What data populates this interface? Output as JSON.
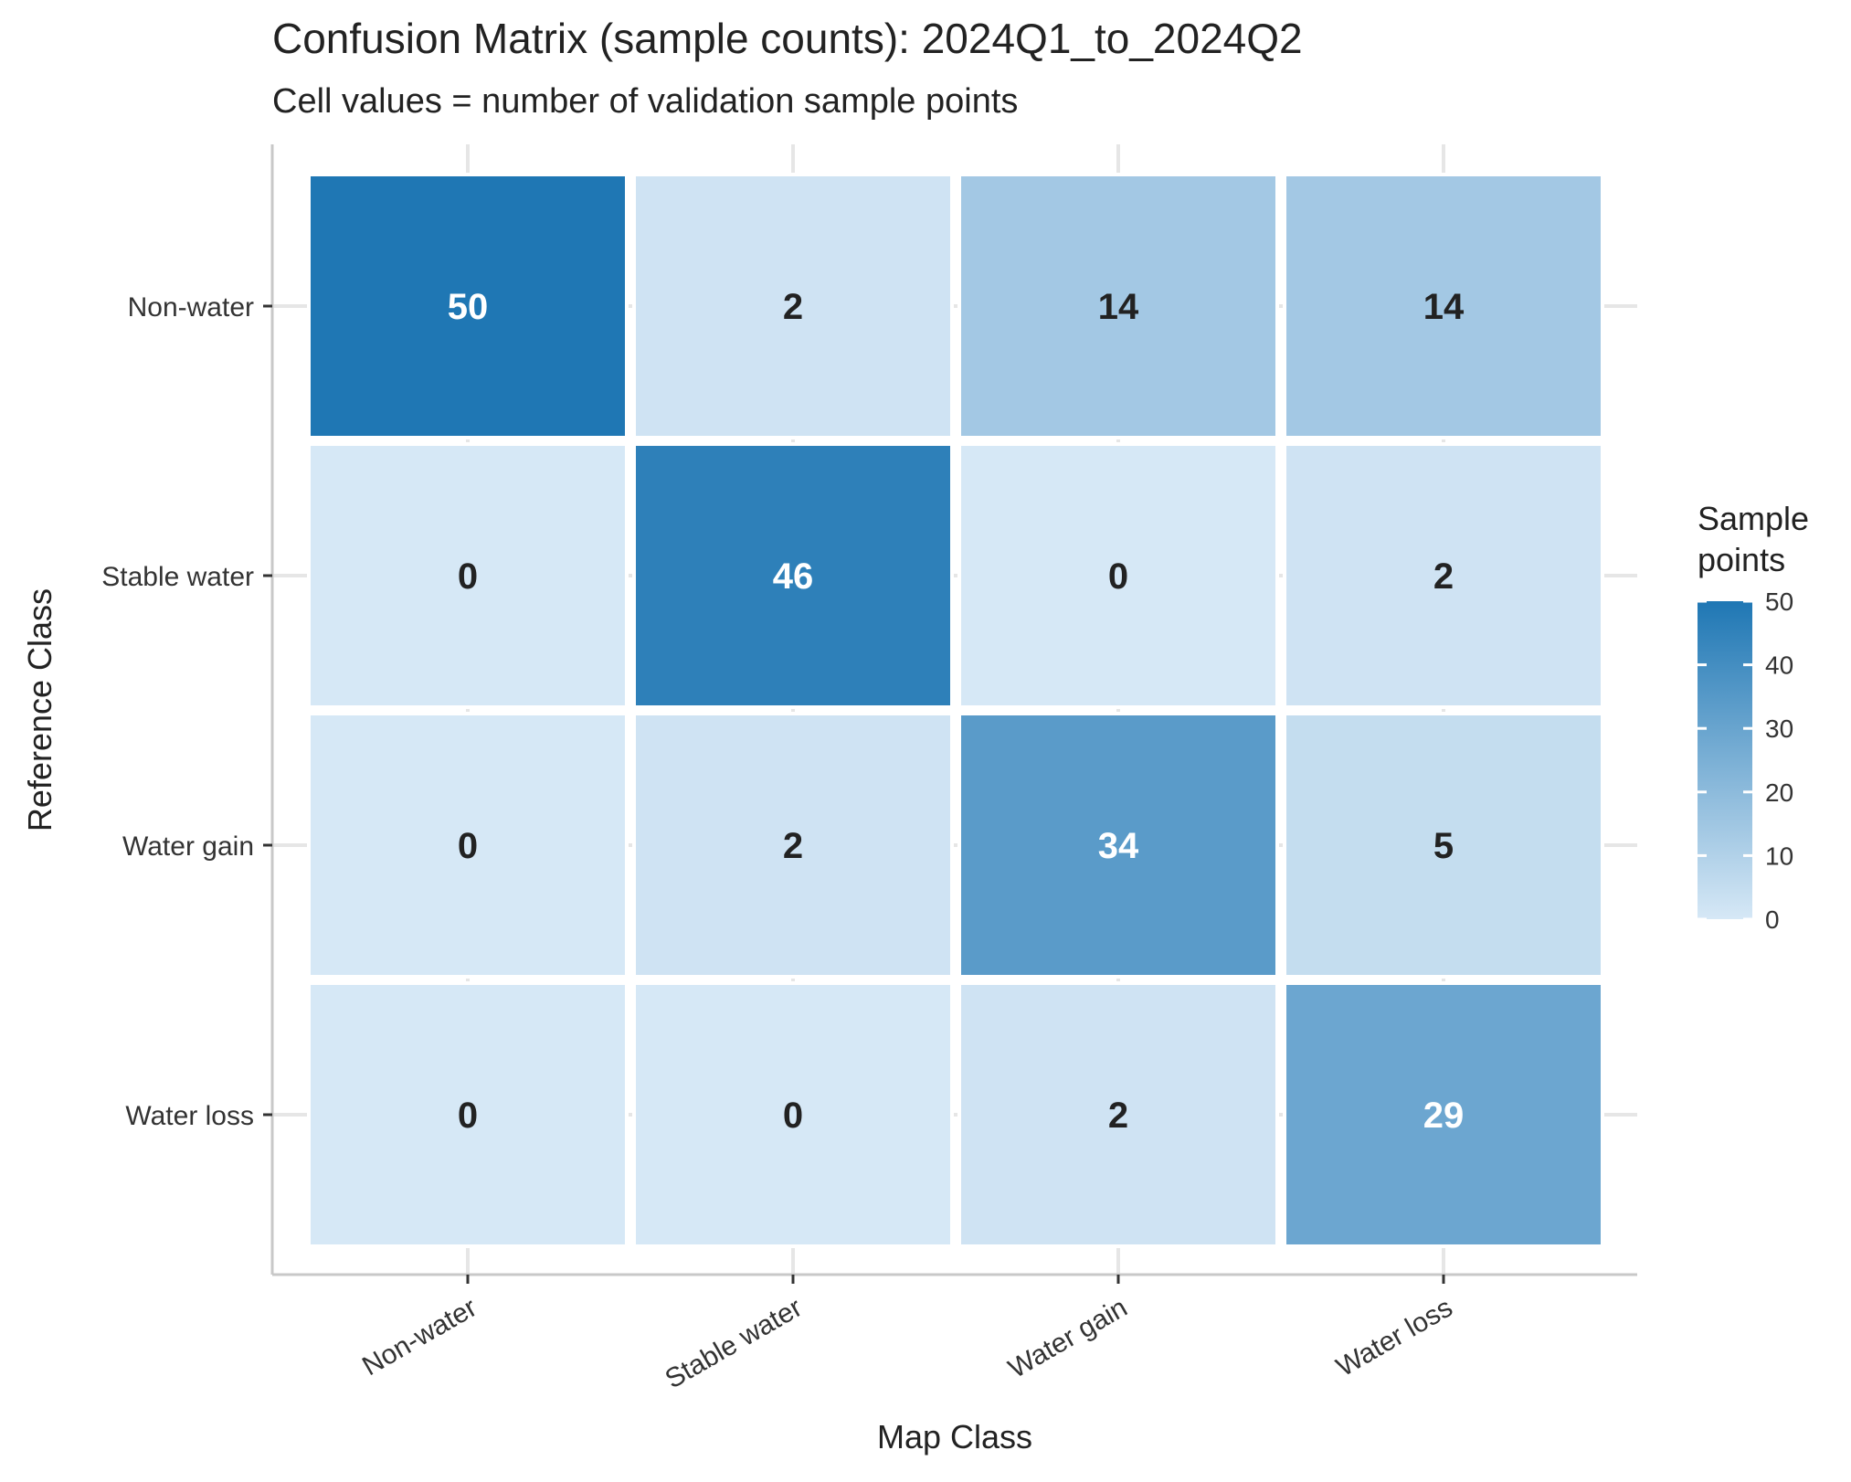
{
  "chart_data": {
    "type": "heatmap",
    "title": "Confusion Matrix (sample counts): 2024Q1_to_2024Q2",
    "subtitle": "Cell values = number of validation sample points",
    "xlabel": "Map Class",
    "ylabel": "Reference Class",
    "x_categories": [
      "Non-water",
      "Stable water",
      "Water gain",
      "Water loss"
    ],
    "y_categories": [
      "Non-water",
      "Stable water",
      "Water gain",
      "Water loss"
    ],
    "values": [
      [
        50,
        2,
        14,
        14
      ],
      [
        0,
        46,
        0,
        2
      ],
      [
        0,
        2,
        34,
        5
      ],
      [
        0,
        0,
        2,
        29
      ]
    ],
    "legend": {
      "title_lines": [
        "Sample",
        "points"
      ],
      "min": 0,
      "max": 50,
      "ticks": [
        0,
        10,
        20,
        30,
        40,
        50
      ],
      "placement": "right"
    },
    "colors": {
      "low": "#d6e8f6",
      "high": "#1f77b4",
      "grid": "#e6e6e6",
      "axis": "#c8c8c8",
      "label_dark": "#222222",
      "label_light": "#ffffff"
    },
    "grid": true
  }
}
